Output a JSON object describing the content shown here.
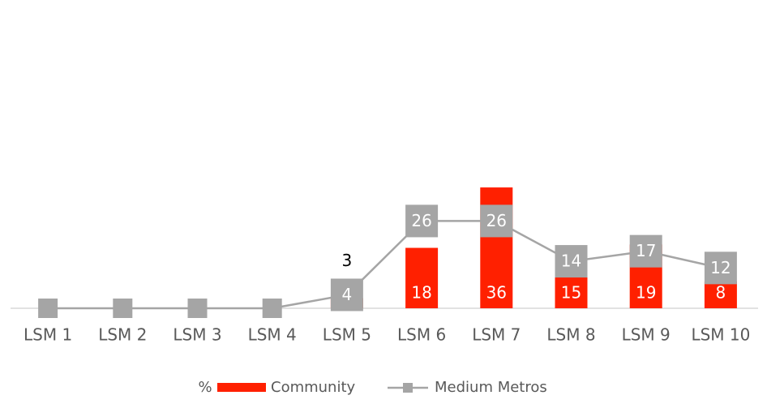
{
  "chart_data": {
    "type": "bar_line",
    "categories": [
      "LSM 1",
      "LSM 2",
      "LSM 3",
      "LSM 4",
      "LSM 5",
      "LSM 6",
      "LSM 7",
      "LSM 8",
      "LSM 9",
      "LSM 10"
    ],
    "series": [
      {
        "name": "Community",
        "type": "bar",
        "color": "#ff2000",
        "values": [
          0,
          0,
          0,
          0,
          3,
          18,
          36,
          15,
          19,
          8
        ]
      },
      {
        "name": "Medium Metros",
        "type": "line",
        "color": "#a5a5a5",
        "values": [
          0,
          0,
          0,
          0,
          4,
          26,
          26,
          14,
          17,
          12
        ]
      }
    ],
    "legend_title": "%",
    "ylim": [
      0,
      80
    ],
    "legend": "bottom"
  }
}
